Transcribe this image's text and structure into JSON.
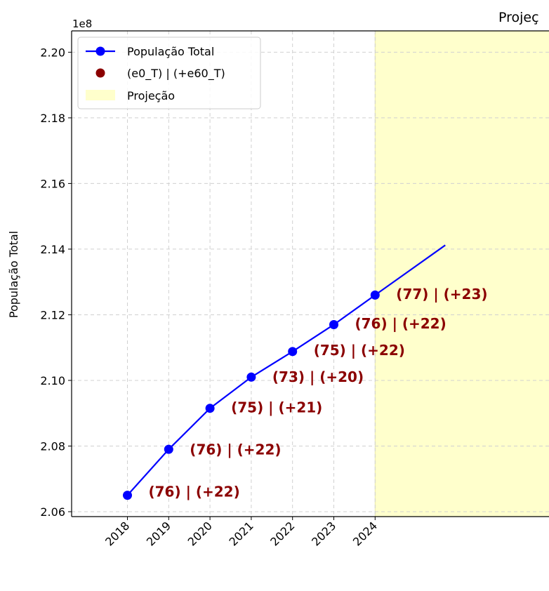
{
  "chart_data": {
    "type": "line",
    "title": "Projeç",
    "ylabel": "População Total",
    "y_offset_label": "1e8",
    "x": [
      "2018",
      "2019",
      "2020",
      "2021",
      "2022",
      "2023",
      "2024"
    ],
    "yticks": [
      "2.06",
      "2.08",
      "2.10",
      "2.12",
      "2.14",
      "2.16",
      "2.18",
      "2.20"
    ],
    "ylim": [
      2.0585,
      2.2065
    ],
    "series": [
      {
        "name": "População Total",
        "color": "#0000ff",
        "values": [
          2.065,
          2.079,
          2.0915,
          2.101,
          2.1088,
          2.117,
          2.126
        ],
        "continuation": {
          "x_index": 7.7,
          "value": 2.1412
        }
      }
    ],
    "annotations": [
      {
        "x_index": 0,
        "value": 2.0659,
        "text": "(76) | (+22)"
      },
      {
        "x_index": 1,
        "value": 2.0787,
        "text": "(76) | (+22)"
      },
      {
        "x_index": 2,
        "value": 2.0915,
        "text": "(75) | (+21)"
      },
      {
        "x_index": 3,
        "value": 2.1009,
        "text": "(73) | (+20)"
      },
      {
        "x_index": 4,
        "value": 2.109,
        "text": "(75) | (+22)"
      },
      {
        "x_index": 5,
        "value": 2.1171,
        "text": "(76) | (+22)"
      },
      {
        "x_index": 6,
        "value": 2.1261,
        "text": "(77) | (+23)"
      }
    ],
    "annotation_color": "#8b0000",
    "projection_start_index": 6,
    "projection_color": "#ffffcc",
    "legend": {
      "position": "top-left",
      "entries": [
        {
          "label": "População Total",
          "kind": "line-marker",
          "color": "#0000ff"
        },
        {
          "label": "(e0_T) | (+e60_T)",
          "kind": "marker",
          "color": "#8b0000"
        },
        {
          "label": "Projeção",
          "kind": "patch",
          "color": "#ffffcc"
        }
      ]
    },
    "grid": true
  }
}
